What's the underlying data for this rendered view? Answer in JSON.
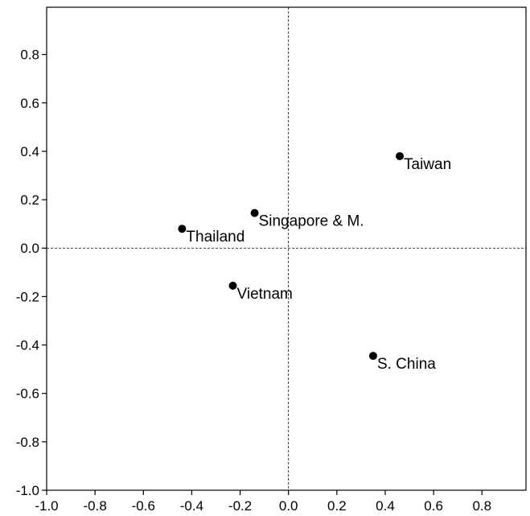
{
  "chart_data": {
    "type": "scatter",
    "title": "",
    "xlabel": "",
    "ylabel": "",
    "xlim": [
      -1.0,
      1.0
    ],
    "ylim": [
      -1.0,
      1.0
    ],
    "xticks": [
      -1.0,
      -0.8,
      -0.6,
      -0.4,
      -0.2,
      0.0,
      0.2,
      0.4,
      0.6,
      0.8
    ],
    "yticks": [
      -1.0,
      -0.8,
      -0.6,
      -0.4,
      -0.2,
      0.0,
      0.2,
      0.4,
      0.6,
      0.8
    ],
    "xtick_labels": [
      "-1.0",
      "-0.8",
      "-0.6",
      "-0.4",
      "-0.2",
      "0.0",
      "0.2",
      "0.4",
      "0.6",
      "0.8"
    ],
    "ytick_labels": [
      "-1.0",
      "-0.8",
      "-0.6",
      "-0.4",
      "-0.2",
      "0.0",
      "0.2",
      "0.4",
      "0.6",
      "0.8"
    ],
    "grid": false,
    "reference_lines": {
      "x": 0,
      "y": 0,
      "style": "dashed"
    },
    "points": [
      {
        "label": "Taiwan",
        "x": 0.46,
        "y": 0.38
      },
      {
        "label": "Singapore & M.",
        "x": -0.14,
        "y": 0.145
      },
      {
        "label": "Thailand",
        "x": -0.44,
        "y": 0.08
      },
      {
        "label": "Vietnam",
        "x": -0.23,
        "y": -0.155
      },
      {
        "label": "S. China",
        "x": 0.35,
        "y": -0.445
      }
    ],
    "marker_color": "#000000"
  }
}
